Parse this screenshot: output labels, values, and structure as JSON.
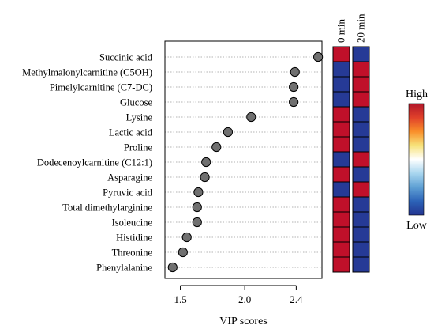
{
  "chart_data": {
    "type": "scatter",
    "title": "",
    "xlabel": "VIP scores",
    "ylabel": "",
    "xlim": [
      1.38,
      2.6
    ],
    "xticks": [
      1.5,
      2.0,
      2.4
    ],
    "xtick_labels": [
      "1.5",
      "2.0",
      "2.4"
    ],
    "grid": "dotted horizontal lines",
    "metabolites": [
      "Succinic acid",
      "Methylmalonylcarnitine (C5OH)",
      "Pimelylcarnitine (C7-DC)",
      "Glucose",
      "Lysine",
      "Lactic acid",
      "Proline",
      "Dodecenoylcarnitine (C12:1)",
      "Asparagine",
      "Pyruvic acid",
      "Total dimethylarginine",
      "Isoleucine",
      "Histidine",
      "Threonine",
      "Phenylalanine"
    ],
    "vip_scores": [
      2.57,
      2.39,
      2.38,
      2.38,
      2.05,
      1.87,
      1.78,
      1.7,
      1.69,
      1.64,
      1.63,
      1.63,
      1.55,
      1.52,
      1.44
    ],
    "heatmap": {
      "columns": [
        "0 min",
        "20 min"
      ],
      "levels": [
        [
          "high",
          "low"
        ],
        [
          "low",
          "high"
        ],
        [
          "low",
          "high"
        ],
        [
          "low",
          "high"
        ],
        [
          "high",
          "low"
        ],
        [
          "high",
          "low"
        ],
        [
          "high",
          "low"
        ],
        [
          "low",
          "high"
        ],
        [
          "high",
          "low"
        ],
        [
          "low",
          "high"
        ],
        [
          "high",
          "low"
        ],
        [
          "high",
          "low"
        ],
        [
          "high",
          "low"
        ],
        [
          "high",
          "low"
        ],
        [
          "high",
          "low"
        ]
      ],
      "colors": {
        "high": "#c0102a",
        "low": "#263a96"
      }
    },
    "legend": {
      "high_label": "High",
      "low_label": "Low",
      "placement": "right",
      "gradient": [
        "#b2182b",
        "#e0402a",
        "#f98e2a",
        "#f7e27a",
        "#ffffff",
        "#a9d6ef",
        "#5fa0d4",
        "#2c63b8",
        "#23338f"
      ]
    },
    "marker_color": "#707070"
  }
}
